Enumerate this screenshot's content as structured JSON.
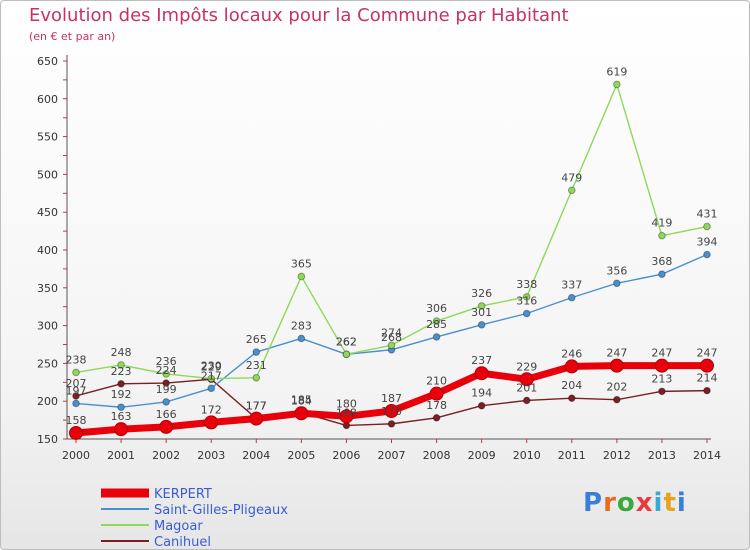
{
  "title": "Evolution des Impôts locaux pour la Commune par Habitant",
  "subtitle": "(en € et par an)",
  "brand": {
    "letters": [
      "P",
      "r",
      "o",
      "x",
      "i",
      "t",
      "i"
    ],
    "colors": [
      "#3a7fd6",
      "#e86b1f",
      "#3aa83a",
      "#e83a3a",
      "#3aa8d6",
      "#e8a21f",
      "#3a7fd6"
    ]
  },
  "chart_data": {
    "type": "line",
    "title": "Evolution des Impôts locaux pour la Commune par Habitant",
    "subtitle": "(en € et par an)",
    "x": [
      "2000",
      "2001",
      "2002",
      "2003",
      "2004",
      "2005",
      "2006",
      "2007",
      "2008",
      "2009",
      "2010",
      "2011",
      "2012",
      "2013",
      "2014"
    ],
    "ylim": [
      150,
      650
    ],
    "yticks": [
      "150",
      "200",
      "250",
      "300",
      "350",
      "400",
      "450",
      "500",
      "550",
      "600",
      "650"
    ],
    "grid": false,
    "legend_position": "bottom-left",
    "series": [
      {
        "name": "KERPERT",
        "color": "#e8000b",
        "values": [
          158,
          163,
          166,
          172,
          177,
          184,
          180,
          187,
          210,
          237,
          229,
          246,
          247,
          247,
          247
        ],
        "labels": [
          "158",
          "163",
          "166",
          "172",
          "177",
          "184",
          "180",
          "187",
          "210",
          "237",
          "229",
          "246",
          "247",
          "247",
          "247"
        ]
      },
      {
        "name": "Saint-Gilles-Pligeaux",
        "color": "#4a8fcf",
        "values": [
          197,
          192,
          199,
          217,
          265,
          283,
          262,
          268,
          285,
          301,
          316,
          337,
          356,
          368,
          394
        ],
        "labels": [
          "197",
          "192",
          "199",
          "217",
          "265",
          "283",
          "262",
          "268",
          "285",
          "301",
          "316",
          "337",
          "356",
          "368",
          "394"
        ]
      },
      {
        "name": "Magoar",
        "color": "#8ed85a",
        "values": [
          238,
          248,
          236,
          230,
          231,
          365,
          262,
          274,
          306,
          326,
          338,
          479,
          619,
          419,
          431
        ],
        "labels": [
          "238",
          "248",
          "236",
          "230",
          "231",
          "365",
          "262",
          "274",
          "306",
          "326",
          "338",
          "479",
          "619",
          "419",
          "431"
        ]
      },
      {
        "name": "Canihuel",
        "color": "#7a1f22",
        "values": [
          207,
          223,
          224,
          229,
          177,
          185,
          168,
          170,
          178,
          194,
          201,
          204,
          202,
          213,
          214
        ],
        "labels": [
          "207",
          "223",
          "224",
          "229",
          "177",
          "185",
          "168",
          "170",
          "178",
          "194",
          "201",
          "204",
          "202",
          "213",
          "214"
        ]
      }
    ]
  }
}
